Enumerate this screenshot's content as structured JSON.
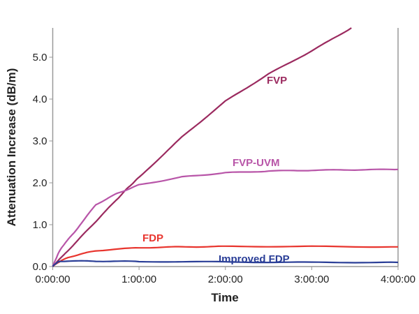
{
  "chart_data": {
    "type": "line",
    "title": "",
    "xlabel": "Time",
    "ylabel": "Attenuation Increase (dB/m)",
    "xlim": [
      0,
      4
    ],
    "ylim": [
      0,
      5.7
    ],
    "x_unit": "hours",
    "xtick_labels": [
      "0:00:00",
      "1:00:00",
      "2:00:00",
      "3:00:00",
      "4:00:00"
    ],
    "xtick_values": [
      0,
      1,
      2,
      3,
      4
    ],
    "ytick_labels": [
      "0.0",
      "1.0",
      "2.0",
      "3.0",
      "4.0",
      "5.0"
    ],
    "ytick_values": [
      0,
      1,
      2,
      3,
      4,
      5
    ],
    "grid": false,
    "series": [
      {
        "name": "FVP",
        "color": "#9b2a5f",
        "x": [
          0,
          0.25,
          0.5,
          0.75,
          0.89,
          1,
          1.5,
          2,
          2.5,
          3,
          3.46
        ],
        "y": [
          0,
          0.54,
          1.08,
          1.62,
          1.92,
          2.13,
          3.1,
          3.95,
          4.6,
          5.15,
          5.7
        ]
      },
      {
        "name": "FVP-UVM",
        "color": "#b855a8",
        "x": [
          0,
          0.05,
          0.1,
          0.25,
          0.5,
          0.75,
          1,
          1.5,
          2,
          2.5,
          3,
          3.5,
          4
        ],
        "y": [
          0,
          0.25,
          0.45,
          0.82,
          1.48,
          1.75,
          1.95,
          2.14,
          2.24,
          2.28,
          2.3,
          2.31,
          2.32
        ]
      },
      {
        "name": "FDP",
        "color": "#e8352e",
        "x": [
          0,
          0.1,
          0.25,
          0.5,
          1,
          1.5,
          2,
          3,
          4
        ],
        "y": [
          0,
          0.15,
          0.26,
          0.38,
          0.45,
          0.47,
          0.48,
          0.48,
          0.47
        ]
      },
      {
        "name": "Improved FDP",
        "color": "#2a3e97",
        "x": [
          0,
          0.05,
          0.1,
          0.5,
          1,
          2,
          3,
          4
        ],
        "y": [
          0,
          0.1,
          0.13,
          0.13,
          0.12,
          0.11,
          0.1,
          0.1
        ]
      }
    ],
    "annotations": [
      "FVP",
      "FVP-UVM",
      "FDP",
      "Improved FDP"
    ]
  }
}
